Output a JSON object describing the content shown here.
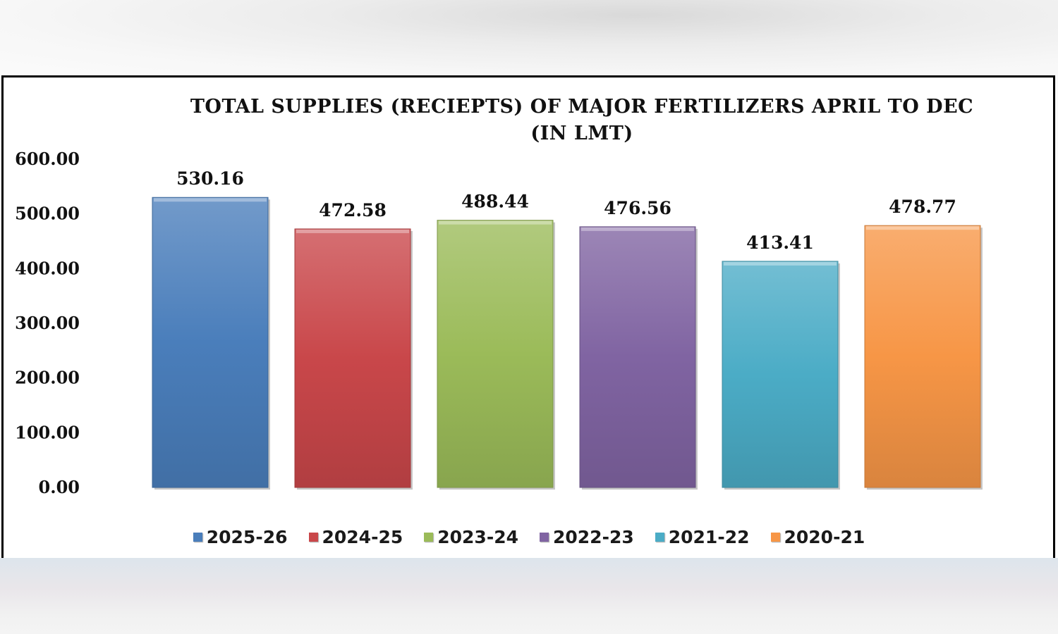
{
  "chart_data": {
    "type": "bar",
    "title": "TOTAL SUPPLIES (RECIEPTS) OF MAJOR FERTILIZERS APRIL TO DEC (IN LMT)",
    "title_lines": [
      "TOTAL SUPPLIES (RECIEPTS) OF MAJOR FERTILIZERS APRIL TO DEC",
      "(IN LMT)"
    ],
    "xlabel": "",
    "ylabel": "",
    "ylim": [
      0,
      600
    ],
    "yticks": [
      "0.00",
      "100.00",
      "200.00",
      "300.00",
      "400.00",
      "500.00",
      "600.00"
    ],
    "grid": false,
    "legend_position": "bottom",
    "series": [
      {
        "name": "2025-26",
        "value": 530.16,
        "label": "530.16",
        "color": "#4a7ebb"
      },
      {
        "name": "2024-25",
        "value": 472.58,
        "label": "472.58",
        "color": "#c9474a"
      },
      {
        "name": "2023-24",
        "value": 488.44,
        "label": "488.44",
        "color": "#9bbb59"
      },
      {
        "name": "2022-23",
        "value": 476.56,
        "label": "476.56",
        "color": "#8064a2"
      },
      {
        "name": "2021-22",
        "value": 413.41,
        "label": "413.41",
        "color": "#4bacc6"
      },
      {
        "name": "2020-21",
        "value": 478.77,
        "label": "478.77",
        "color": "#f79646"
      }
    ]
  }
}
